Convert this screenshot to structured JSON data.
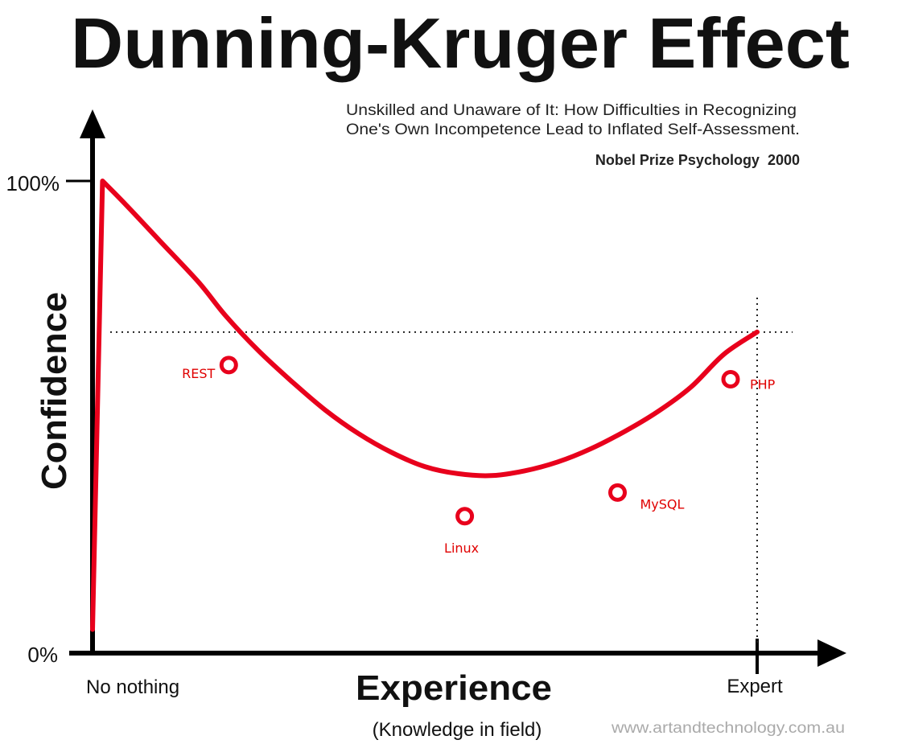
{
  "chart_data": {
    "type": "line",
    "title": "Dunning-Kruger Effect",
    "subtitle_lines": [
      "Unskilled and Unaware of It: How Difficulties in Recognizing",
      "One's Own Incompetence Lead to Inflated Self-Assessment."
    ],
    "note": "Nobel Prize Psychology  2000",
    "ylabel": "Confidence",
    "xlabel": "Experience",
    "xlabel_sub": "(Knowledge in field)",
    "y_ticks": [
      "100%",
      "0%"
    ],
    "x_ticks": [
      "No nothing",
      "Expert"
    ],
    "xlim": [
      0,
      100
    ],
    "ylim": [
      0,
      100
    ],
    "reference_level": 68,
    "curve": {
      "x": [
        0,
        1.5,
        5,
        10,
        16,
        20,
        25,
        30,
        35,
        40,
        45,
        50,
        55,
        60,
        65,
        70,
        75,
        80,
        85,
        90,
        95,
        100
      ],
      "y": [
        5,
        100,
        95,
        87.5,
        78.5,
        71.5,
        64,
        57.5,
        51.5,
        46.5,
        42.5,
        39.5,
        38,
        37.6,
        38.6,
        40.5,
        43.3,
        46.9,
        51.1,
        56.3,
        63.3,
        68
      ]
    },
    "points": [
      {
        "label": "REST",
        "x": 20.5,
        "y": 61
      },
      {
        "label": "Linux",
        "x": 56,
        "y": 29
      },
      {
        "label": "MySQL",
        "x": 79,
        "y": 34
      },
      {
        "label": "PHP",
        "x": 96,
        "y": 58
      }
    ],
    "curve_color": "#e8001c",
    "label_color": "#e00000",
    "axis_color": "#000000",
    "watermark": "www.artandtechnology.com.au"
  }
}
